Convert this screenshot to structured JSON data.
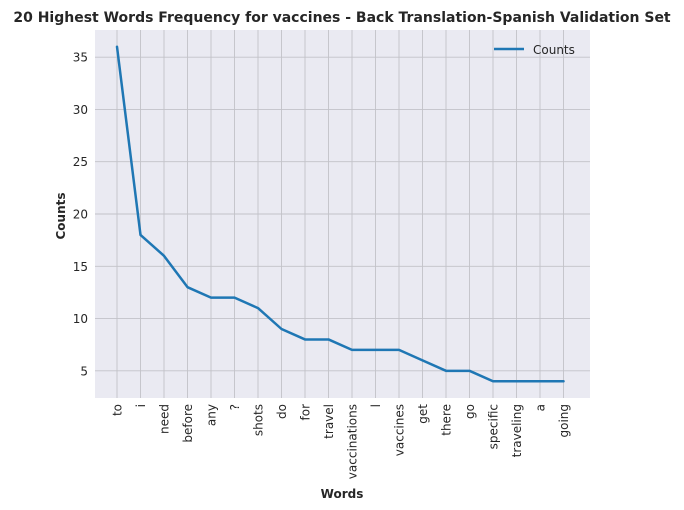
{
  "chart_data": {
    "type": "line",
    "title": "20 Highest Words Frequency for vaccines - Back Translation-Spanish Validation Set",
    "xlabel": "Words",
    "ylabel": "Counts",
    "categories": [
      "to",
      "i",
      "need",
      "before",
      "any",
      "?",
      "shots",
      "do",
      "for",
      "travel",
      "vaccinations",
      "l",
      "vaccines",
      "get",
      "there",
      "go",
      "specific",
      "traveling",
      "a",
      "going"
    ],
    "series": [
      {
        "name": "Counts",
        "values": [
          36,
          18,
          16,
          13,
          12,
          12,
          11,
          9,
          8,
          8,
          7,
          7,
          7,
          6,
          5,
          5,
          4,
          4,
          4,
          4
        ]
      }
    ],
    "ylim": [
      2.4,
      37.6
    ],
    "yticks": [
      5,
      10,
      15,
      20,
      25,
      30,
      35
    ],
    "grid": true,
    "legend_position": "upper right",
    "colors": {
      "line": "#1f77b4",
      "plot_background": "#eaeaf2",
      "grid": "#c2c2c8",
      "text": "#262626"
    }
  }
}
